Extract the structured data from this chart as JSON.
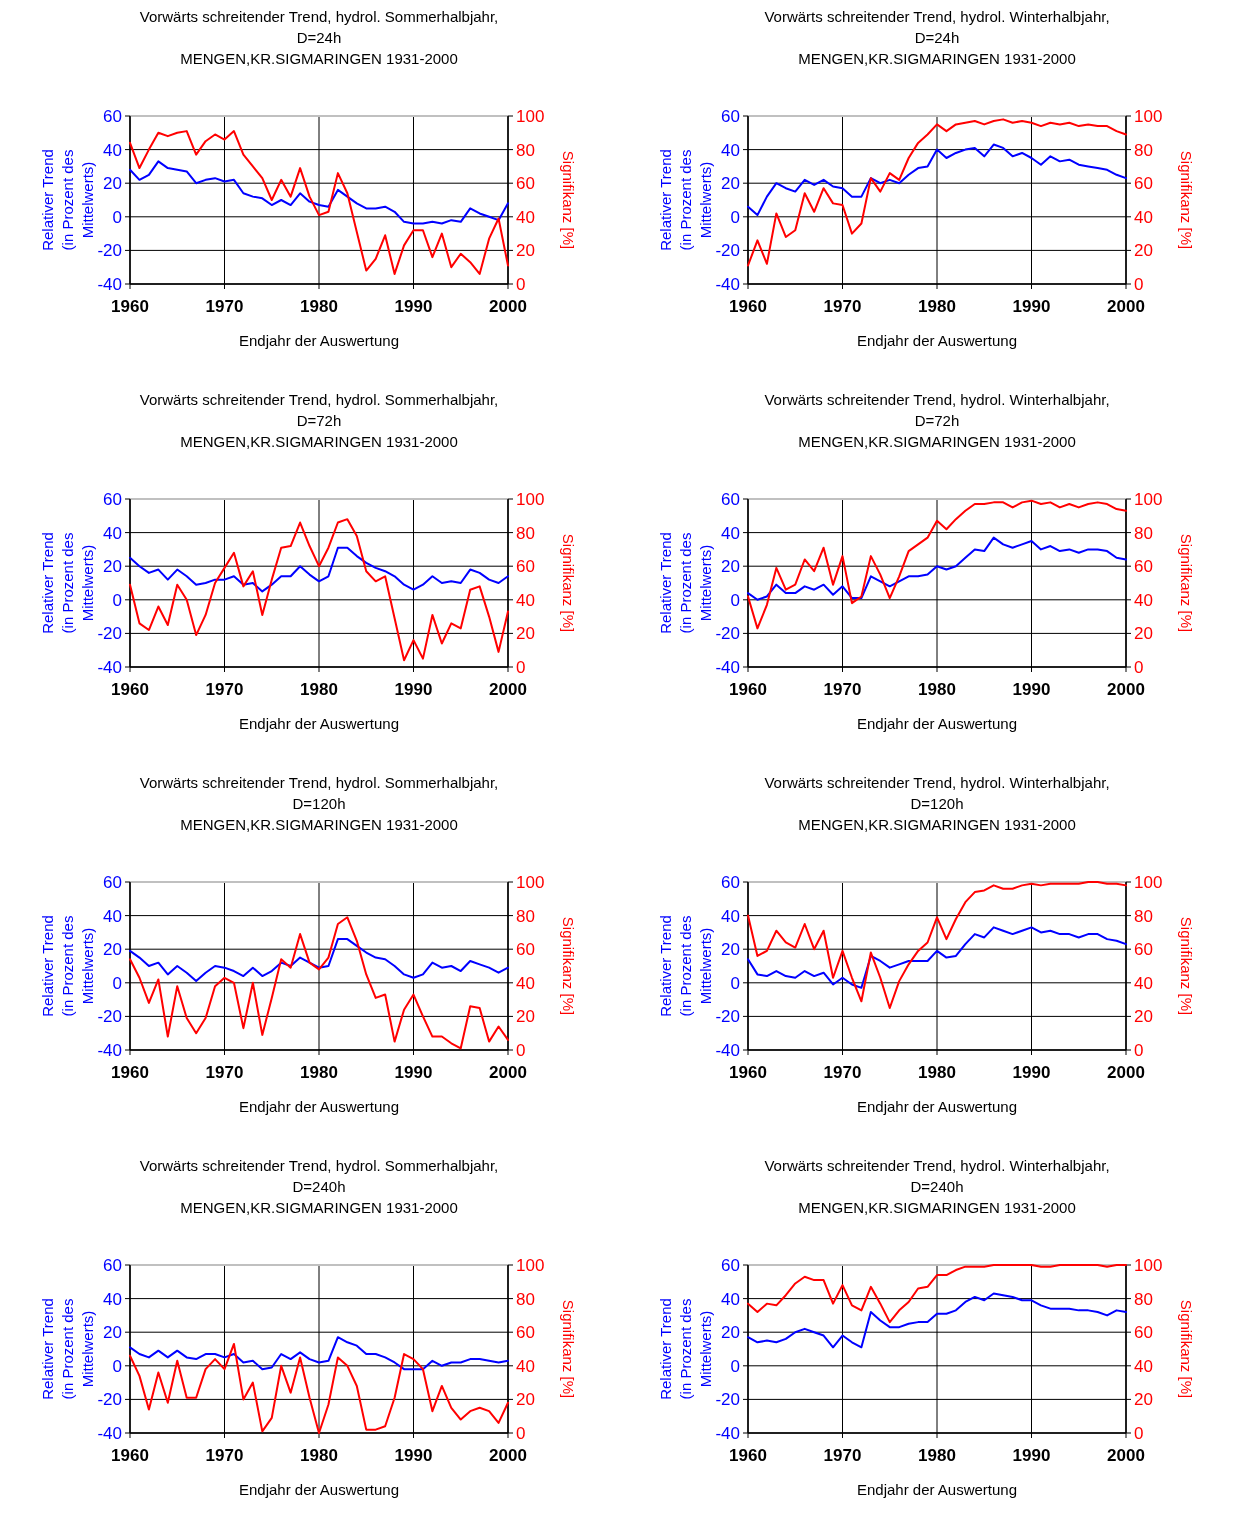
{
  "chart_data": [
    {
      "type": "line",
      "title": "Vorwärts schreitender Trend,  hydrol. Sommerhalbjahr,",
      "subtitle": "D=24h\nMENGEN,KR.SIGMARINGEN  1931-2000",
      "xlabel": "Endjahr der Auswertung",
      "ylabel": "Relativer Trend\n(in Prozent des\nMittelwerts)",
      "y2label": "Signifikanz [%]",
      "x": [
        1960,
        1961,
        1962,
        1963,
        1964,
        1965,
        1966,
        1967,
        1968,
        1969,
        1970,
        1971,
        1972,
        1973,
        1974,
        1975,
        1976,
        1977,
        1978,
        1979,
        1980,
        1981,
        1982,
        1983,
        1984,
        1985,
        1986,
        1987,
        1988,
        1989,
        1990,
        1991,
        1992,
        1993,
        1994,
        1995,
        1996,
        1997,
        1998,
        1999,
        2000
      ],
      "xlim": [
        1960,
        2000
      ],
      "xticks": [
        1960,
        1970,
        1980,
        1990,
        2000
      ],
      "ylim": [
        -40,
        60
      ],
      "yticks": [
        -40,
        -20,
        0,
        20,
        40,
        60
      ],
      "y2lim": [
        0,
        100
      ],
      "y2ticks": [
        0,
        20,
        40,
        60,
        80,
        100
      ],
      "grid": true,
      "series": [
        {
          "color": "#0000ff",
          "values": [
            28,
            22,
            25,
            33,
            29,
            28,
            27,
            20,
            22,
            23,
            21,
            22,
            14,
            12,
            11,
            7,
            10,
            7,
            14,
            9,
            7,
            6,
            16,
            12,
            8,
            5,
            5,
            6,
            3,
            -3,
            -4,
            -4,
            -3,
            -4,
            -2,
            -3,
            5,
            2,
            0,
            -2,
            8
          ]
        },
        {
          "color": "#ff0000",
          "axis": "y2",
          "values": [
            84,
            69,
            80,
            90,
            88,
            90,
            91,
            77,
            85,
            89,
            86,
            91,
            77,
            70,
            63,
            50,
            62,
            52,
            69,
            52,
            41,
            43,
            66,
            54,
            31,
            8,
            15,
            29,
            6,
            23,
            32,
            32,
            16,
            30,
            10,
            18,
            13,
            6,
            27,
            39,
            11
          ]
        }
      ]
    },
    {
      "type": "line",
      "title": "Vorwärts schreitender Trend,  hydrol. Winterhalbjahr,",
      "subtitle": "D=24h\nMENGEN,KR.SIGMARINGEN  1931-2000",
      "xlabel": "Endjahr der Auswertung",
      "ylabel": "Relativer Trend\n(in Prozent des\nMittelwerts)",
      "y2label": "Signifikanz [%]",
      "x": [
        1960,
        1961,
        1962,
        1963,
        1964,
        1965,
        1966,
        1967,
        1968,
        1969,
        1970,
        1971,
        1972,
        1973,
        1974,
        1975,
        1976,
        1977,
        1978,
        1979,
        1980,
        1981,
        1982,
        1983,
        1984,
        1985,
        1986,
        1987,
        1988,
        1989,
        1990,
        1991,
        1992,
        1993,
        1994,
        1995,
        1996,
        1997,
        1998,
        1999,
        2000
      ],
      "xlim": [
        1960,
        2000
      ],
      "xticks": [
        1960,
        1970,
        1980,
        1990,
        2000
      ],
      "ylim": [
        -40,
        60
      ],
      "yticks": [
        -40,
        -20,
        0,
        20,
        40,
        60
      ],
      "y2lim": [
        0,
        100
      ],
      "y2ticks": [
        0,
        20,
        40,
        60,
        80,
        100
      ],
      "grid": true,
      "series": [
        {
          "color": "#0000ff",
          "values": [
            6,
            1,
            12,
            20,
            17,
            15,
            22,
            19,
            22,
            18,
            17,
            12,
            12,
            23,
            20,
            22,
            20,
            25,
            29,
            30,
            40,
            35,
            38,
            40,
            41,
            36,
            43,
            41,
            36,
            38,
            35,
            31,
            36,
            33,
            34,
            31,
            30,
            29,
            28,
            25,
            23
          ]
        },
        {
          "color": "#ff0000",
          "axis": "y2",
          "values": [
            11,
            26,
            12,
            42,
            28,
            32,
            54,
            43,
            57,
            48,
            47,
            30,
            36,
            63,
            55,
            66,
            62,
            75,
            84,
            89,
            95,
            91,
            95,
            96,
            97,
            95,
            97,
            98,
            96,
            97,
            96,
            94,
            96,
            95,
            96,
            94,
            95,
            94,
            94,
            91,
            89
          ]
        }
      ]
    },
    {
      "type": "line",
      "title": "Vorwärts schreitender Trend,  hydrol. Sommerhalbjahr,",
      "subtitle": "D=72h\nMENGEN,KR.SIGMARINGEN  1931-2000",
      "xlabel": "Endjahr der Auswertung",
      "ylabel": "Relativer Trend\n(in Prozent des\nMittelwerts)",
      "y2label": "Signifikanz [%]",
      "x": [
        1960,
        1961,
        1962,
        1963,
        1964,
        1965,
        1966,
        1967,
        1968,
        1969,
        1970,
        1971,
        1972,
        1973,
        1974,
        1975,
        1976,
        1977,
        1978,
        1979,
        1980,
        1981,
        1982,
        1983,
        1984,
        1985,
        1986,
        1987,
        1988,
        1989,
        1990,
        1991,
        1992,
        1993,
        1994,
        1995,
        1996,
        1997,
        1998,
        1999,
        2000
      ],
      "xlim": [
        1960,
        2000
      ],
      "xticks": [
        1960,
        1970,
        1980,
        1990,
        2000
      ],
      "ylim": [
        -40,
        60
      ],
      "yticks": [
        -40,
        -20,
        0,
        20,
        40,
        60
      ],
      "y2lim": [
        0,
        100
      ],
      "y2ticks": [
        0,
        20,
        40,
        60,
        80,
        100
      ],
      "grid": true,
      "series": [
        {
          "color": "#0000ff",
          "values": [
            25,
            20,
            16,
            18,
            12,
            18,
            14,
            9,
            10,
            12,
            12,
            14,
            9,
            10,
            5,
            9,
            14,
            14,
            20,
            15,
            11,
            14,
            31,
            31,
            26,
            22,
            19,
            17,
            14,
            9,
            6,
            9,
            14,
            10,
            11,
            10,
            18,
            16,
            12,
            10,
            14
          ]
        },
        {
          "color": "#ff0000",
          "axis": "y2",
          "values": [
            49,
            26,
            22,
            36,
            25,
            49,
            40,
            19,
            31,
            50,
            59,
            68,
            48,
            57,
            31,
            52,
            71,
            72,
            86,
            72,
            60,
            71,
            86,
            88,
            78,
            57,
            51,
            54,
            29,
            4,
            16,
            5,
            31,
            14,
            26,
            23,
            46,
            48,
            30,
            9,
            33
          ]
        }
      ]
    },
    {
      "type": "line",
      "title": "Vorwärts schreitender Trend,  hydrol. Winterhalbjahr,",
      "subtitle": "D=72h\nMENGEN,KR.SIGMARINGEN  1931-2000",
      "xlabel": "Endjahr der Auswertung",
      "ylabel": "Relativer Trend\n(in Prozent des\nMittelwerts)",
      "y2label": "Signifikanz [%]",
      "x": [
        1960,
        1961,
        1962,
        1963,
        1964,
        1965,
        1966,
        1967,
        1968,
        1969,
        1970,
        1971,
        1972,
        1973,
        1974,
        1975,
        1976,
        1977,
        1978,
        1979,
        1980,
        1981,
        1982,
        1983,
        1984,
        1985,
        1986,
        1987,
        1988,
        1989,
        1990,
        1991,
        1992,
        1993,
        1994,
        1995,
        1996,
        1997,
        1998,
        1999,
        2000
      ],
      "xlim": [
        1960,
        2000
      ],
      "xticks": [
        1960,
        1970,
        1980,
        1990,
        2000
      ],
      "ylim": [
        -40,
        60
      ],
      "yticks": [
        -40,
        -20,
        0,
        20,
        40,
        60
      ],
      "y2lim": [
        0,
        100
      ],
      "y2ticks": [
        0,
        20,
        40,
        60,
        80,
        100
      ],
      "grid": true,
      "series": [
        {
          "color": "#0000ff",
          "values": [
            4,
            0,
            2,
            9,
            4,
            4,
            8,
            6,
            9,
            3,
            8,
            1,
            1,
            14,
            11,
            8,
            11,
            14,
            14,
            15,
            20,
            18,
            20,
            25,
            30,
            29,
            37,
            33,
            31,
            33,
            35,
            30,
            32,
            29,
            30,
            28,
            30,
            30,
            29,
            25,
            24
          ]
        },
        {
          "color": "#ff0000",
          "axis": "y2",
          "values": [
            42,
            23,
            37,
            59,
            46,
            49,
            64,
            57,
            71,
            49,
            66,
            38,
            42,
            66,
            55,
            41,
            54,
            69,
            73,
            77,
            87,
            82,
            88,
            93,
            97,
            97,
            98,
            98,
            95,
            98,
            99,
            97,
            98,
            95,
            97,
            95,
            97,
            98,
            97,
            94,
            93
          ]
        }
      ]
    },
    {
      "type": "line",
      "title": "Vorwärts schreitender Trend,  hydrol. Sommerhalbjahr,",
      "subtitle": "D=120h\nMENGEN,KR.SIGMARINGEN  1931-2000",
      "xlabel": "Endjahr der Auswertung",
      "ylabel": "Relativer Trend\n(in Prozent des\nMittelwerts)",
      "y2label": "Signifikanz [%]",
      "x": [
        1960,
        1961,
        1962,
        1963,
        1964,
        1965,
        1966,
        1967,
        1968,
        1969,
        1970,
        1971,
        1972,
        1973,
        1974,
        1975,
        1976,
        1977,
        1978,
        1979,
        1980,
        1981,
        1982,
        1983,
        1984,
        1985,
        1986,
        1987,
        1988,
        1989,
        1990,
        1991,
        1992,
        1993,
        1994,
        1995,
        1996,
        1997,
        1998,
        1999,
        2000
      ],
      "xlim": [
        1960,
        2000
      ],
      "xticks": [
        1960,
        1970,
        1980,
        1990,
        2000
      ],
      "ylim": [
        -40,
        60
      ],
      "yticks": [
        -40,
        -20,
        0,
        20,
        40,
        60
      ],
      "y2lim": [
        0,
        100
      ],
      "y2ticks": [
        0,
        20,
        40,
        60,
        80,
        100
      ],
      "grid": true,
      "series": [
        {
          "color": "#0000ff",
          "values": [
            19,
            15,
            10,
            12,
            5,
            10,
            6,
            1,
            6,
            10,
            9,
            7,
            4,
            9,
            4,
            7,
            12,
            10,
            15,
            12,
            9,
            10,
            26,
            26,
            22,
            18,
            15,
            14,
            10,
            5,
            3,
            5,
            12,
            9,
            10,
            7,
            13,
            11,
            9,
            6,
            9
          ]
        },
        {
          "color": "#ff0000",
          "axis": "y2",
          "values": [
            54,
            43,
            28,
            42,
            8,
            38,
            19,
            10,
            19,
            38,
            43,
            40,
            13,
            40,
            9,
            31,
            54,
            49,
            69,
            52,
            48,
            55,
            75,
            79,
            65,
            45,
            31,
            33,
            5,
            24,
            33,
            20,
            8,
            8,
            4,
            1,
            26,
            25,
            5,
            14,
            6
          ]
        }
      ]
    },
    {
      "type": "line",
      "title": "Vorwärts schreitender Trend,  hydrol. Winterhalbjahr,",
      "subtitle": "D=120h\nMENGEN,KR.SIGMARINGEN  1931-2000",
      "xlabel": "Endjahr der Auswertung",
      "ylabel": "Relativer Trend\n(in Prozent des\nMittelwerts)",
      "y2label": "Signifikanz [%]",
      "x": [
        1960,
        1961,
        1962,
        1963,
        1964,
        1965,
        1966,
        1967,
        1968,
        1969,
        1970,
        1971,
        1972,
        1973,
        1974,
        1975,
        1976,
        1977,
        1978,
        1979,
        1980,
        1981,
        1982,
        1983,
        1984,
        1985,
        1986,
        1987,
        1988,
        1989,
        1990,
        1991,
        1992,
        1993,
        1994,
        1995,
        1996,
        1997,
        1998,
        1999,
        2000
      ],
      "xlim": [
        1960,
        2000
      ],
      "xticks": [
        1960,
        1970,
        1980,
        1990,
        2000
      ],
      "ylim": [
        -40,
        60
      ],
      "yticks": [
        -40,
        -20,
        0,
        20,
        40,
        60
      ],
      "y2lim": [
        0,
        100
      ],
      "y2ticks": [
        0,
        20,
        40,
        60,
        80,
        100
      ],
      "grid": true,
      "series": [
        {
          "color": "#0000ff",
          "values": [
            14,
            5,
            4,
            7,
            4,
            3,
            7,
            4,
            6,
            -1,
            3,
            -1,
            -3,
            16,
            13,
            9,
            11,
            13,
            13,
            13,
            19,
            15,
            16,
            23,
            29,
            27,
            33,
            31,
            29,
            31,
            33,
            30,
            31,
            29,
            29,
            27,
            29,
            29,
            26,
            25,
            23
          ]
        },
        {
          "color": "#ff0000",
          "axis": "y2",
          "values": [
            80,
            56,
            59,
            71,
            64,
            61,
            75,
            60,
            71,
            43,
            59,
            43,
            29,
            58,
            43,
            25,
            41,
            51,
            59,
            64,
            79,
            66,
            78,
            88,
            94,
            95,
            98,
            96,
            96,
            98,
            99,
            98,
            99,
            99,
            99,
            99,
            100,
            100,
            99,
            99,
            98
          ]
        }
      ]
    },
    {
      "type": "line",
      "title": "Vorwärts schreitender Trend,  hydrol. Sommerhalbjahr,",
      "subtitle": "D=240h\nMENGEN,KR.SIGMARINGEN  1931-2000",
      "xlabel": "Endjahr der Auswertung",
      "ylabel": "Relativer Trend\n(in Prozent des\nMittelwerts)",
      "y2label": "Signifikanz [%]",
      "x": [
        1960,
        1961,
        1962,
        1963,
        1964,
        1965,
        1966,
        1967,
        1968,
        1969,
        1970,
        1971,
        1972,
        1973,
        1974,
        1975,
        1976,
        1977,
        1978,
        1979,
        1980,
        1981,
        1982,
        1983,
        1984,
        1985,
        1986,
        1987,
        1988,
        1989,
        1990,
        1991,
        1992,
        1993,
        1994,
        1995,
        1996,
        1997,
        1998,
        1999,
        2000
      ],
      "xlim": [
        1960,
        2000
      ],
      "xticks": [
        1960,
        1970,
        1980,
        1990,
        2000
      ],
      "ylim": [
        -40,
        60
      ],
      "yticks": [
        -40,
        -20,
        0,
        20,
        40,
        60
      ],
      "y2lim": [
        0,
        100
      ],
      "y2ticks": [
        0,
        20,
        40,
        60,
        80,
        100
      ],
      "grid": true,
      "series": [
        {
          "color": "#0000ff",
          "values": [
            11,
            7,
            5,
            9,
            5,
            9,
            5,
            4,
            7,
            7,
            5,
            7,
            2,
            3,
            -2,
            -1,
            7,
            4,
            8,
            4,
            2,
            3,
            17,
            14,
            12,
            7,
            7,
            5,
            2,
            -2,
            -2,
            -2,
            3,
            0,
            2,
            2,
            4,
            4,
            3,
            2,
            3
          ]
        },
        {
          "color": "#ff0000",
          "axis": "y2",
          "values": [
            46,
            34,
            14,
            36,
            18,
            43,
            21,
            21,
            38,
            44,
            38,
            53,
            20,
            30,
            1,
            9,
            40,
            24,
            45,
            21,
            0,
            17,
            45,
            40,
            28,
            2,
            2,
            4,
            21,
            47,
            44,
            38,
            13,
            28,
            15,
            8,
            13,
            15,
            13,
            6,
            18
          ]
        }
      ]
    },
    {
      "type": "line",
      "title": "Vorwärts schreitender Trend,  hydrol. Winterhalbjahr,",
      "subtitle": "D=240h\nMENGEN,KR.SIGMARINGEN  1931-2000",
      "xlabel": "Endjahr der Auswertung",
      "ylabel": "Relativer Trend\n(in Prozent des\nMittelwerts)",
      "y2label": "Signifikanz [%]",
      "x": [
        1960,
        1961,
        1962,
        1963,
        1964,
        1965,
        1966,
        1967,
        1968,
        1969,
        1970,
        1971,
        1972,
        1973,
        1974,
        1975,
        1976,
        1977,
        1978,
        1979,
        1980,
        1981,
        1982,
        1983,
        1984,
        1985,
        1986,
        1987,
        1988,
        1989,
        1990,
        1991,
        1992,
        1993,
        1994,
        1995,
        1996,
        1997,
        1998,
        1999,
        2000
      ],
      "xlim": [
        1960,
        2000
      ],
      "xticks": [
        1960,
        1970,
        1980,
        1990,
        2000
      ],
      "ylim": [
        -40,
        60
      ],
      "yticks": [
        -40,
        -20,
        0,
        20,
        40,
        60
      ],
      "y2lim": [
        0,
        100
      ],
      "y2ticks": [
        0,
        20,
        40,
        60,
        80,
        100
      ],
      "grid": true,
      "series": [
        {
          "color": "#0000ff",
          "values": [
            17,
            14,
            15,
            14,
            16,
            20,
            22,
            20,
            18,
            11,
            18,
            14,
            11,
            32,
            27,
            23,
            23,
            25,
            26,
            26,
            31,
            31,
            33,
            38,
            41,
            39,
            43,
            42,
            41,
            39,
            39,
            36,
            34,
            34,
            34,
            33,
            33,
            32,
            30,
            33,
            32
          ]
        },
        {
          "color": "#ff0000",
          "axis": "y2",
          "values": [
            77,
            72,
            77,
            76,
            82,
            89,
            93,
            91,
            91,
            77,
            88,
            76,
            73,
            87,
            77,
            66,
            73,
            78,
            86,
            87,
            94,
            94,
            97,
            99,
            99,
            99,
            100,
            100,
            100,
            100,
            100,
            99,
            99,
            100,
            100,
            100,
            100,
            100,
            99,
            100,
            100
          ]
        }
      ]
    }
  ]
}
